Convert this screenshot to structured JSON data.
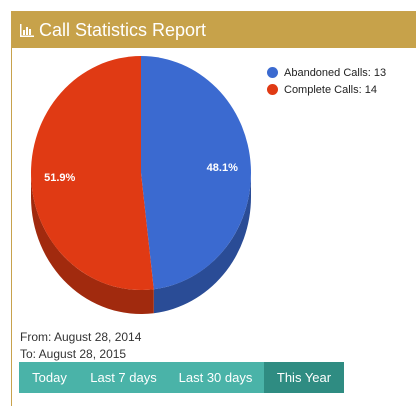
{
  "header": {
    "title": "Call Statistics Report",
    "icon": "bar-chart-icon"
  },
  "chart_data": {
    "type": "pie",
    "series": [
      {
        "name": "Abandoned Calls",
        "value": 13,
        "label": "48.1%",
        "color": "#3b6ad0"
      },
      {
        "name": "Complete Calls",
        "value": 14,
        "label": "51.9%",
        "color": "#e03a14"
      }
    ],
    "legend_position": "top-right"
  },
  "legend": {
    "items": [
      {
        "label": "Abandoned Calls: 13",
        "color": "#3b6ad0"
      },
      {
        "label": "Complete Calls: 14",
        "color": "#e03a14"
      }
    ]
  },
  "range": {
    "from": "From: August 28, 2014",
    "to": "To: August 28, 2015"
  },
  "filters": [
    {
      "label": "Today",
      "active": false
    },
    {
      "label": "Last 7 days",
      "active": false
    },
    {
      "label": "Last 30 days",
      "active": false
    },
    {
      "label": "This Year",
      "active": true
    }
  ],
  "colors": {
    "header": "#c7a24a",
    "filter": "#4ab3a8",
    "filter_active": "#2f8c82"
  }
}
